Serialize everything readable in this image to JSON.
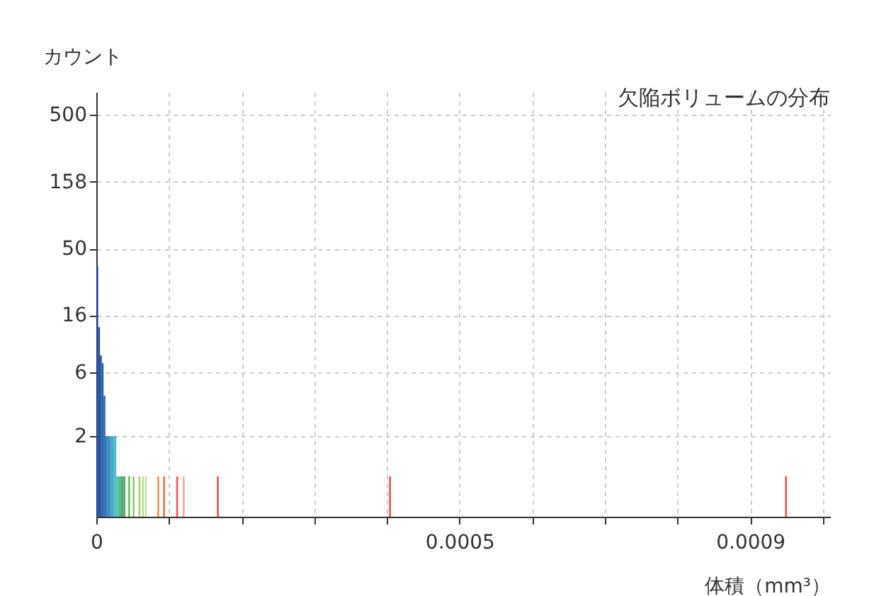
{
  "chart_data": {
    "type": "histogram",
    "title": "欠陥ボリュームの分布",
    "xlabel": "体積（mm³）",
    "ylabel": "カウント",
    "bins": [
      0,
      2.5e-06,
      5e-06,
      7.5e-06,
      1e-05,
      1.25e-05,
      1.5e-05,
      1.75e-05,
      2e-05,
      2.25e-05,
      2.5e-05,
      2.75e-05,
      3e-05,
      3.25e-05,
      3.5e-05,
      3.75e-05,
      4e-05,
      4.4e-05,
      4.65e-05,
      5e-05,
      5.25e-05,
      5.8e-05,
      6.05e-05,
      6.3e-05,
      6.55e-05,
      6.7e-05,
      6.95e-05,
      8.4e-05,
      8.65e-05,
      9.2e-05,
      9.45e-05,
      0.00011,
      0.0001125,
      0.000119,
      0.0001215,
      0.000166,
      0.0001685,
      0.000403,
      0.0004055,
      0.000948,
      0.0009505
    ],
    "values": [
      37,
      13,
      8,
      7,
      4,
      2,
      2,
      2,
      2,
      2,
      2,
      1,
      1,
      1,
      1,
      1,
      null,
      1,
      null,
      1,
      null,
      1,
      null,
      1,
      null,
      1,
      null,
      1,
      null,
      1,
      null,
      1,
      null,
      1,
      null,
      1,
      null,
      1,
      null,
      1
    ],
    "colors": [
      "#1d3f8f",
      "#1f4a9c",
      "#2255a6",
      "#2560ad",
      "#2a6bb3",
      "#2f78ba",
      "#3585c0",
      "#3b93c4",
      "#40a1c6",
      "#45afc6",
      "#4bbcc4",
      "#4fc2b4",
      "#4ab99a",
      "#48b07f",
      "#4aa966",
      "#56ad5a",
      null,
      "#6abb5c",
      null,
      "#8cc66e",
      null,
      "#a6d280",
      null,
      "#b8dc8e",
      null,
      "#c4e29a",
      null,
      "#e8944a",
      null,
      "#ee6a3c",
      null,
      "#e85a5a",
      null,
      "#f4a6a6",
      null,
      "#e8504a",
      null,
      "#e8504a",
      null,
      "#e8504a"
    ],
    "log": "y",
    "grid": true,
    "xlim": [
      0,
      0.00101
    ],
    "xticks": [
      0,
      {
        "value": 0.0001,
        "label": null
      },
      {
        "value": 0.0002,
        "label": null
      },
      {
        "value": 0.0003,
        "label": null
      },
      {
        "value": 0.0004,
        "label": null
      },
      0.0005,
      {
        "value": 0.0006,
        "label": null
      },
      {
        "value": 0.0007,
        "label": null
      },
      {
        "value": 0.0008,
        "label": null
      },
      0.0009,
      {
        "value": 0.001,
        "label": null
      }
    ],
    "ylim": [
      0.5,
      740
    ],
    "yticks": [
      2,
      6,
      16,
      50,
      158,
      500
    ]
  }
}
